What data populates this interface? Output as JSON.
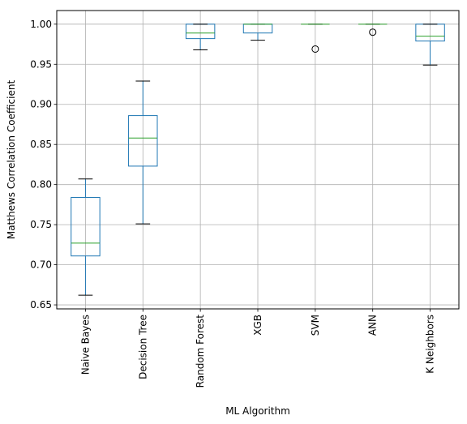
{
  "chart_data": {
    "type": "box",
    "xlabel": "ML Algorithm",
    "ylabel": "Matthews Correlation Coefficient",
    "ylim": [
      0.645,
      1.017
    ],
    "yticks": [
      "0.65",
      "0.70",
      "0.75",
      "0.80",
      "0.85",
      "0.90",
      "0.95",
      "1.00"
    ],
    "grid": true,
    "categories": [
      "Naive Bayes",
      "Decision Tree",
      "Random Forest",
      "XGB",
      "SVM",
      "ANN",
      "K Neighbors"
    ],
    "boxes": [
      {
        "whisker_low": 0.662,
        "q1": 0.711,
        "median": 0.727,
        "q3": 0.784,
        "whisker_high": 0.807,
        "outliers": []
      },
      {
        "whisker_low": 0.751,
        "q1": 0.823,
        "median": 0.858,
        "q3": 0.886,
        "whisker_high": 0.929,
        "outliers": []
      },
      {
        "whisker_low": 0.968,
        "q1": 0.982,
        "median": 0.989,
        "q3": 1.0,
        "whisker_high": 1.0,
        "outliers": []
      },
      {
        "whisker_low": 0.98,
        "q1": 0.989,
        "median": 1.0,
        "q3": 1.0,
        "whisker_high": 1.0,
        "outliers": []
      },
      {
        "whisker_low": 1.0,
        "q1": 1.0,
        "median": 1.0,
        "q3": 1.0,
        "whisker_high": 1.0,
        "outliers": [
          0.969
        ]
      },
      {
        "whisker_low": 1.0,
        "q1": 1.0,
        "median": 1.0,
        "q3": 1.0,
        "whisker_high": 1.0,
        "outliers": [
          0.99
        ]
      },
      {
        "whisker_low": 0.949,
        "q1": 0.979,
        "median": 0.985,
        "q3": 1.0,
        "whisker_high": 1.0,
        "outliers": []
      }
    ],
    "colors": {
      "box": "#1f77b4",
      "median": "#2ca02c",
      "whisker_cap": "#000000",
      "grid": "#b0b0b0",
      "axis": "#000000"
    }
  }
}
